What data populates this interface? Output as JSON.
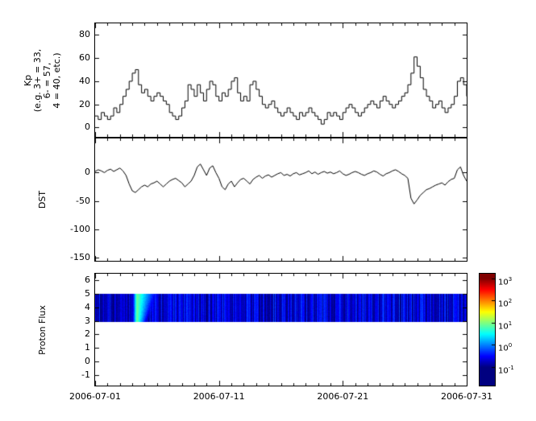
{
  "figure": {
    "background": "#ffffff",
    "axis_color": "#000000",
    "line_color": "#000000"
  },
  "x_axis": {
    "tick_labels": [
      "2006-07-01",
      "2006-07-11",
      "2006-07-21",
      "2006-07-31"
    ],
    "tick_days": [
      1,
      11,
      21,
      31
    ],
    "day_range": [
      1,
      31
    ]
  },
  "chart_data": [
    {
      "id": "kp",
      "type": "line",
      "style": "step",
      "ylabel_lines": [
        "Kp",
        "(e.g. 3+ = 33,",
        "6- = 57,",
        "4 = 40, etc.)"
      ],
      "ylim": [
        -8,
        90
      ],
      "yticks": [
        0,
        20,
        40,
        60,
        80
      ],
      "samples_per_day": 4,
      "x_start_day": 1,
      "values": [
        10,
        7,
        13,
        10,
        7,
        10,
        17,
        13,
        20,
        27,
        33,
        40,
        47,
        50,
        37,
        30,
        33,
        27,
        23,
        27,
        30,
        27,
        23,
        20,
        13,
        10,
        7,
        10,
        17,
        23,
        37,
        33,
        27,
        37,
        30,
        23,
        33,
        40,
        37,
        27,
        23,
        30,
        27,
        33,
        40,
        43,
        30,
        23,
        27,
        23,
        37,
        40,
        33,
        27,
        20,
        17,
        20,
        23,
        17,
        13,
        10,
        13,
        17,
        13,
        10,
        7,
        13,
        10,
        13,
        17,
        13,
        10,
        7,
        3,
        7,
        13,
        10,
        13,
        10,
        7,
        13,
        17,
        20,
        17,
        13,
        10,
        13,
        17,
        20,
        23,
        20,
        17,
        23,
        27,
        23,
        20,
        17,
        20,
        23,
        27,
        30,
        37,
        47,
        61,
        53,
        43,
        33,
        27,
        23,
        17,
        20,
        23,
        17,
        13,
        17,
        20,
        27,
        40,
        43,
        37,
        27
      ]
    },
    {
      "id": "dst",
      "type": "line",
      "style": "line",
      "ylabel": "DST",
      "ylim": [
        -155,
        60
      ],
      "yticks": [
        0,
        -50,
        -100,
        -150
      ],
      "samples_per_day": 4,
      "x_start_day": 1,
      "values": [
        2,
        5,
        3,
        0,
        4,
        6,
        2,
        5,
        8,
        3,
        -5,
        -20,
        -32,
        -35,
        -30,
        -25,
        -22,
        -25,
        -20,
        -18,
        -15,
        -20,
        -25,
        -20,
        -15,
        -12,
        -10,
        -14,
        -18,
        -25,
        -20,
        -15,
        -5,
        10,
        15,
        5,
        -5,
        8,
        12,
        0,
        -10,
        -25,
        -30,
        -20,
        -15,
        -25,
        -18,
        -12,
        -10,
        -15,
        -20,
        -12,
        -8,
        -5,
        -10,
        -6,
        -4,
        -8,
        -5,
        -2,
        0,
        -5,
        -3,
        -6,
        -2,
        0,
        -4,
        -2,
        0,
        3,
        -2,
        1,
        -3,
        0,
        2,
        -1,
        1,
        -2,
        0,
        3,
        -2,
        -5,
        -3,
        0,
        2,
        0,
        -3,
        -5,
        -2,
        0,
        3,
        1,
        -3,
        -6,
        -2,
        0,
        3,
        5,
        2,
        -2,
        -5,
        -10,
        -45,
        -55,
        -48,
        -40,
        -35,
        -30,
        -28,
        -25,
        -22,
        -20,
        -18,
        -22,
        -16,
        -12,
        -10,
        5,
        10,
        -5,
        -15
      ]
    },
    {
      "id": "proton_flux",
      "type": "heatmap",
      "ylabel": "Proton Flux",
      "ylim": [
        -1.8,
        6.5
      ],
      "yticks": [
        6,
        5,
        4,
        3,
        2,
        1,
        0,
        -1
      ],
      "band_y_range": [
        2.95,
        5.05
      ],
      "background_log10_range": [
        -1.05,
        -0.25
      ],
      "enhancement": {
        "start_day": 3.95,
        "peak_day": 4.35,
        "end_day": 6.3,
        "peak_log10": 0.95
      },
      "colorbar": {
        "scale": "log",
        "data_log_min": -1,
        "data_log_max": 3,
        "display_log_min": -1.8,
        "display_log_max": 3.2,
        "tick_labels": [
          {
            "base": "10",
            "exp": "3"
          },
          {
            "base": "10",
            "exp": "2"
          },
          {
            "base": "10",
            "exp": "1"
          },
          {
            "base": "10",
            "exp": "0"
          },
          {
            "base": "10",
            "exp": "-1"
          }
        ]
      }
    }
  ]
}
